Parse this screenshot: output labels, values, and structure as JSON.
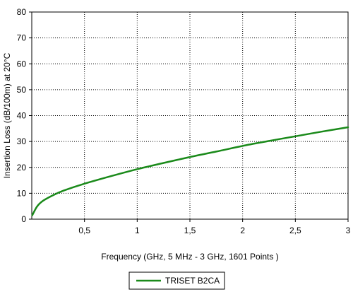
{
  "chart_data": {
    "type": "line",
    "title": "",
    "xlabel": "Frequency (GHz, 5 MHz - 3 GHz, 1601 Points )",
    "ylabel": "Insertion Loss (dB/100m) at 20°C",
    "xlim": [
      0,
      3
    ],
    "ylim": [
      0,
      80
    ],
    "x_ticks": [
      0.5,
      1,
      1.5,
      2,
      2.5,
      3
    ],
    "x_tick_labels": [
      "0,5",
      "1",
      "1,5",
      "2",
      "2,5",
      "3"
    ],
    "y_ticks": [
      0,
      10,
      20,
      30,
      40,
      50,
      60,
      70,
      80
    ],
    "y_tick_labels": [
      "0",
      "10",
      "20",
      "30",
      "40",
      "50",
      "60",
      "70",
      "80"
    ],
    "grid": true,
    "legend_position": "bottom-center",
    "series": [
      {
        "name": "TRISET B2CA",
        "color": "#1a8a1a",
        "x": [
          0.005,
          0.05,
          0.1,
          0.2,
          0.3,
          0.5,
          0.75,
          1.0,
          1.25,
          1.5,
          1.75,
          2.0,
          2.25,
          2.5,
          2.75,
          3.0
        ],
        "y": [
          1.5,
          4.9,
          6.9,
          9.2,
          11.0,
          13.7,
          16.6,
          19.3,
          21.7,
          24.0,
          26.1,
          28.3,
          30.2,
          32.0,
          33.8,
          35.5
        ]
      }
    ]
  }
}
